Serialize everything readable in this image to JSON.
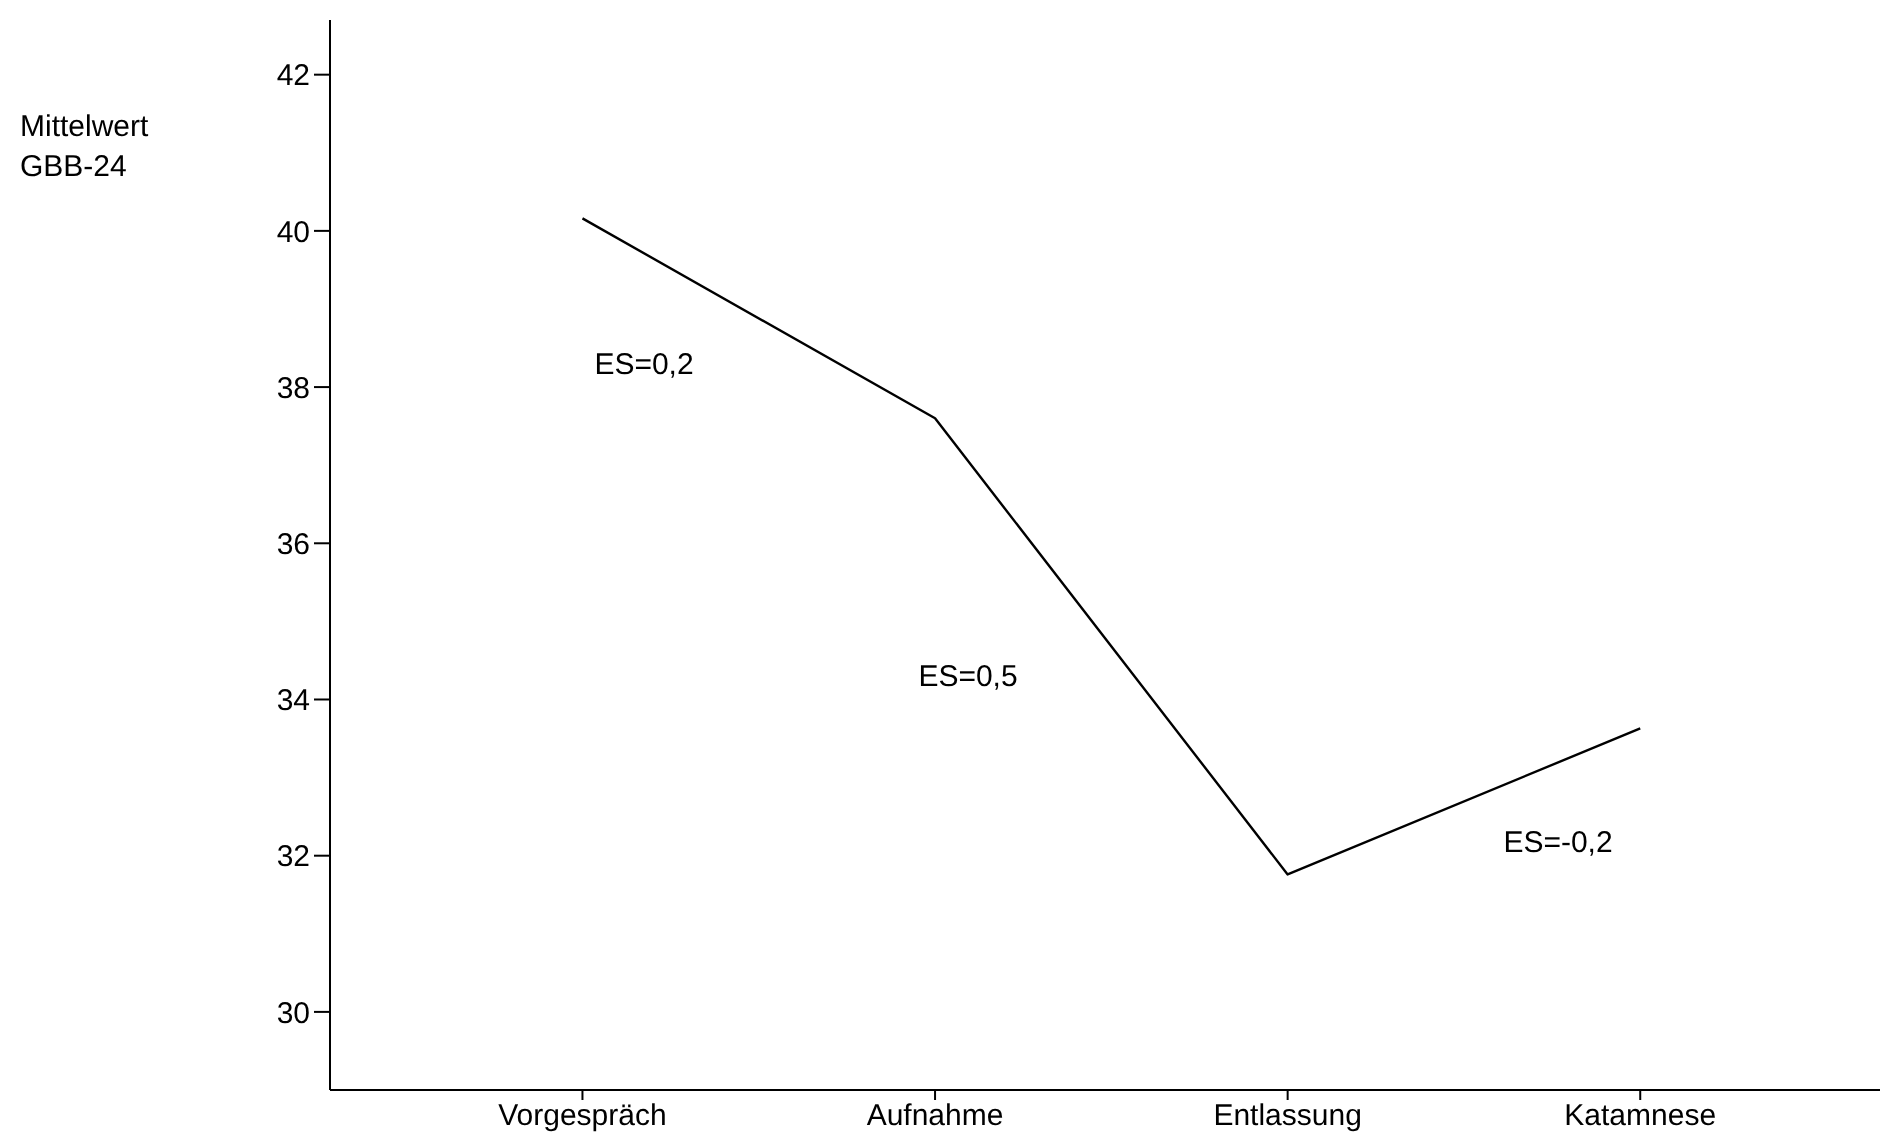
{
  "chart_data": {
    "type": "line",
    "ylabel": "Mittelwert\nGBB-24",
    "categories": [
      "Vorgespräch",
      "Aufnahme",
      "Entlassung",
      "Katamnese"
    ],
    "series": [
      {
        "color": "#000000",
        "values": [
          40.16,
          37.6,
          31.76,
          33.63
        ]
      }
    ],
    "ylim": [
      29,
      42.7
    ],
    "yticks": [
      30,
      32,
      34,
      36,
      38,
      40,
      42
    ],
    "annotations": [
      "ES=0,2",
      "ES=0,5",
      "ES=-0,2"
    ],
    "marker": "none",
    "line_style": "solid",
    "grid": false,
    "legend": false
  }
}
